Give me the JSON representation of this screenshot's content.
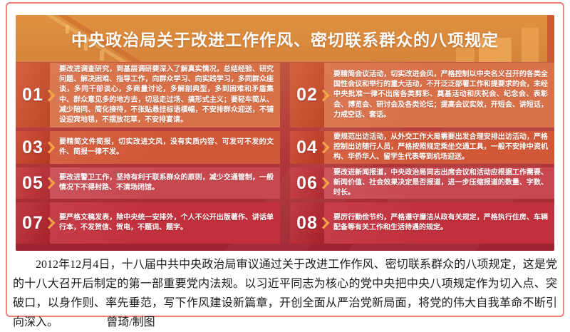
{
  "page": {
    "border_color": "#ee8174",
    "header_bg_top": "#e09140",
    "header_bg_bottom": "#d5843b",
    "body_bg_top": "#c05640",
    "body_bg_bottom": "#9e2230",
    "chevron_color": "#f2a646"
  },
  "poster": {
    "title": "中央政治局关于改进工作作风、密切联系群众的八项规定",
    "items": [
      {
        "num": "01",
        "text": "要改进调查研究，到基层调研要深入了解真实情况，总结经验、研究问题、解决困难、指导工作，向群众学习、向实践学习，多同群众座谈，多同干部谈心，多商量讨论，多解剖典型，多到困难和矛盾集中、群众意见多的地方去，切忌走过场、搞形式主义；要轻车简从、减少陪同、简化接待，不张贴悬挂标语横幅，不安排群众迎送，不铺设迎宾地毯，不摆放花草，不安排宴请。",
        "num_bg": "#d1502e",
        "panel_bg": "#d87048"
      },
      {
        "num": "02",
        "text": "要精简会议活动，切实改进会风，严格控制以中央名义召开的各类全国性会议和举行的重大活动，不开泛泛部署工作和提要求的会，未经中央批准一律不出席各类剪彩、奠基活动和庆祝会、纪念会、表彰会、博览会、研讨会及各类论坛；提高会议实效，开短会、讲短话，力戒空话、套话。",
        "num_bg": "#d1502e",
        "panel_bg": "#d87048"
      },
      {
        "num": "03",
        "text": "要精简文件简报，切实改进文风，没有实质内容、可发可不发的文件、简报一律不发。",
        "num_bg": "#ca3f28",
        "panel_bg": "#d15837"
      },
      {
        "num": "04",
        "text": "要规范出访活动，从外交工作大局需要出发合理安排出访活动，严格控制出访随行人员，严格按照规定乘坐交通工具，一般不安排中资机构、华侨华人、留学生代表等到机场迎送。",
        "num_bg": "#ca3f28",
        "panel_bg": "#d15837"
      },
      {
        "num": "05",
        "text": "要改进警卫工作，坚持有利于联系群众的原则，减少交通管制，一般情况下不得封路、不清场闭馆。",
        "num_bg": "#c23036",
        "panel_bg": "#c84850"
      },
      {
        "num": "06",
        "text": "要改进新闻报道，中央政治局同志出席会议和活动应根据工作需要、新闻价值、社会效果决定是否报道，进一步压缩报道的数量、字数、时长。",
        "num_bg": "#c23036",
        "panel_bg": "#c84850"
      },
      {
        "num": "07",
        "text": "要严格文稿发表，除中央统一安排外，个人不公开出版著作、讲话单行本，不发贺信、贺电，不题词、题字。",
        "num_bg": "#ba2530",
        "panel_bg": "#c1303c"
      },
      {
        "num": "08",
        "text": "要厉行勤俭节约，严格遵守廉洁从政有关规定，严格执行住房、车辆配备等有关工作和生活待遇的规定。",
        "num_bg": "#ba2530",
        "panel_bg": "#c1303c"
      }
    ]
  },
  "footer": {
    "paragraph": "2012年12月4日，十八届中共中央政治局审议通过关于改进工作作风、密切联系群众的八项规定，这是党的十八大召开后制定的第一部重要党内法规。以习近平同志为核心的党中央把中央八项规定作为切入点、突破口，以身作则、率先垂范，写下作风建设新篇章，开创全面从严治党新局面，将党的伟大自我革命不断引向深入。",
    "credit": "曾琦/制图"
  }
}
